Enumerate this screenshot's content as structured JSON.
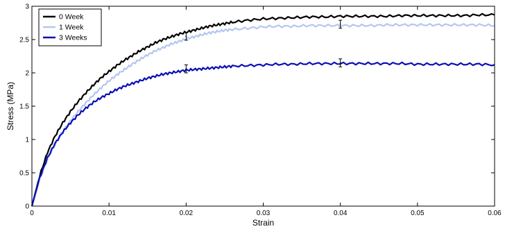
{
  "chart_data": {
    "type": "line",
    "xlabel": "Strain",
    "ylabel": "Stress (MPa)",
    "xlim": [
      0,
      0.06
    ],
    "ylim": [
      0,
      3
    ],
    "xticks": [
      0,
      0.01,
      0.02,
      0.03,
      0.04,
      0.05,
      0.06
    ],
    "yticks": [
      0,
      0.5,
      1,
      1.5,
      2,
      2.5,
      3
    ],
    "xtick_labels": [
      "0",
      "0.01",
      "0.02",
      "0.03",
      "0.04",
      "0.05",
      "0.06"
    ],
    "ytick_labels": [
      "0",
      "0.5",
      "1",
      "1.5",
      "2",
      "2.5",
      "3"
    ],
    "grid": false,
    "legend_position": "top-left",
    "series": [
      {
        "name": "0 Week",
        "color": "#000000",
        "x": [
          0,
          0.001,
          0.002,
          0.003,
          0.004,
          0.005,
          0.006,
          0.007,
          0.008,
          0.009,
          0.01,
          0.011,
          0.012,
          0.013,
          0.014,
          0.015,
          0.016,
          0.017,
          0.018,
          0.019,
          0.02,
          0.021,
          0.022,
          0.023,
          0.024,
          0.025,
          0.026,
          0.028,
          0.03,
          0.032,
          0.034,
          0.036,
          0.038,
          0.04,
          0.042,
          0.044,
          0.046,
          0.048,
          0.05,
          0.052,
          0.054,
          0.056,
          0.058,
          0.06
        ],
        "y": [
          0,
          0.45,
          0.8,
          1.05,
          1.25,
          1.42,
          1.57,
          1.7,
          1.82,
          1.93,
          2.02,
          2.11,
          2.19,
          2.26,
          2.33,
          2.39,
          2.45,
          2.5,
          2.54,
          2.58,
          2.61,
          2.64,
          2.67,
          2.7,
          2.72,
          2.74,
          2.76,
          2.79,
          2.81,
          2.82,
          2.83,
          2.84,
          2.84,
          2.85,
          2.85,
          2.85,
          2.85,
          2.86,
          2.86,
          2.86,
          2.86,
          2.86,
          2.87,
          2.87
        ]
      },
      {
        "name": "1 Week",
        "color": "#b3c7ef",
        "x": [
          0,
          0.001,
          0.002,
          0.003,
          0.004,
          0.005,
          0.006,
          0.007,
          0.008,
          0.009,
          0.01,
          0.011,
          0.012,
          0.013,
          0.014,
          0.015,
          0.016,
          0.017,
          0.018,
          0.019,
          0.02,
          0.021,
          0.022,
          0.023,
          0.024,
          0.025,
          0.026,
          0.028,
          0.03,
          0.032,
          0.034,
          0.036,
          0.038,
          0.04,
          0.042,
          0.044,
          0.046,
          0.048,
          0.05,
          0.052,
          0.054,
          0.056,
          0.058,
          0.06
        ],
        "y": [
          0,
          0.4,
          0.7,
          0.93,
          1.12,
          1.28,
          1.42,
          1.55,
          1.67,
          1.78,
          1.88,
          1.97,
          2.05,
          2.13,
          2.2,
          2.27,
          2.33,
          2.38,
          2.43,
          2.47,
          2.51,
          2.54,
          2.57,
          2.6,
          2.62,
          2.64,
          2.65,
          2.67,
          2.69,
          2.7,
          2.7,
          2.71,
          2.71,
          2.71,
          2.71,
          2.71,
          2.72,
          2.72,
          2.72,
          2.72,
          2.72,
          2.72,
          2.72,
          2.71
        ]
      },
      {
        "name": "3 Weeks",
        "color": "#0a0fb5",
        "x": [
          0,
          0.001,
          0.002,
          0.003,
          0.004,
          0.005,
          0.006,
          0.007,
          0.008,
          0.009,
          0.01,
          0.011,
          0.012,
          0.013,
          0.014,
          0.015,
          0.016,
          0.017,
          0.018,
          0.019,
          0.02,
          0.021,
          0.022,
          0.023,
          0.024,
          0.025,
          0.026,
          0.028,
          0.03,
          0.032,
          0.034,
          0.036,
          0.038,
          0.04,
          0.042,
          0.044,
          0.046,
          0.048,
          0.05,
          0.052,
          0.054,
          0.056,
          0.058,
          0.06
        ],
        "y": [
          0,
          0.42,
          0.72,
          0.94,
          1.11,
          1.25,
          1.37,
          1.47,
          1.56,
          1.63,
          1.69,
          1.75,
          1.8,
          1.84,
          1.88,
          1.92,
          1.95,
          1.98,
          2.0,
          2.02,
          2.04,
          2.05,
          2.06,
          2.07,
          2.08,
          2.09,
          2.1,
          2.11,
          2.12,
          2.13,
          2.13,
          2.14,
          2.14,
          2.14,
          2.14,
          2.14,
          2.14,
          2.14,
          2.13,
          2.13,
          2.13,
          2.13,
          2.13,
          2.12
        ]
      }
    ],
    "error_bars": [
      {
        "series": "0 Week",
        "x": 0.02,
        "y": 2.55,
        "err": 0.06
      },
      {
        "series": "0 Week",
        "x": 0.04,
        "y": 2.73,
        "err": 0.06
      },
      {
        "series": "3 Weeks",
        "x": 0.02,
        "y": 2.06,
        "err": 0.06
      },
      {
        "series": "3 Weeks",
        "x": 0.04,
        "y": 2.15,
        "err": 0.06
      }
    ]
  }
}
